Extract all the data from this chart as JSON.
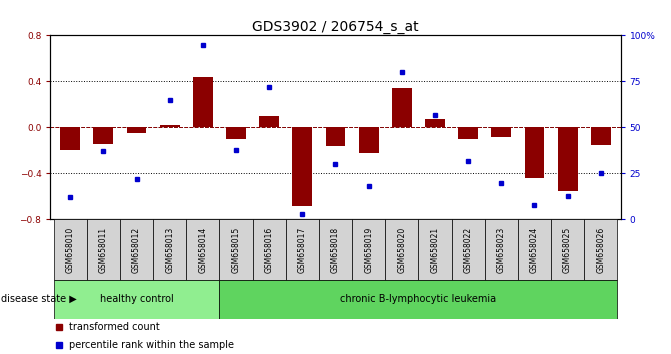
{
  "title": "GDS3902 / 206754_s_at",
  "samples": [
    "GSM658010",
    "GSM658011",
    "GSM658012",
    "GSM658013",
    "GSM658014",
    "GSM658015",
    "GSM658016",
    "GSM658017",
    "GSM658018",
    "GSM658019",
    "GSM658020",
    "GSM658021",
    "GSM658022",
    "GSM658023",
    "GSM658024",
    "GSM658025",
    "GSM658026"
  ],
  "transformed_count": [
    -0.2,
    -0.14,
    -0.05,
    0.02,
    0.44,
    -0.1,
    0.1,
    -0.68,
    -0.16,
    -0.22,
    0.34,
    0.07,
    -0.1,
    -0.08,
    -0.44,
    -0.55,
    -0.15
  ],
  "percentile_rank": [
    12,
    37,
    22,
    65,
    95,
    38,
    72,
    3,
    30,
    18,
    80,
    57,
    32,
    20,
    8,
    13,
    25
  ],
  "group_labels": [
    "healthy control",
    "chronic B-lymphocytic leukemia"
  ],
  "healthy_count": 5,
  "bar_color": "#8b0000",
  "dot_color": "#0000cd",
  "ylim_left": [
    -0.8,
    0.8
  ],
  "ylim_right": [
    0,
    100
  ],
  "yticks_left": [
    -0.8,
    -0.4,
    0.0,
    0.4,
    0.8
  ],
  "yticks_right": [
    0,
    25,
    50,
    75,
    100
  ],
  "ytick_labels_right": [
    "0",
    "25",
    "50",
    "75",
    "100%"
  ],
  "disease_state_label": "disease state",
  "legend_bar_label": "transformed count",
  "legend_dot_label": "percentile rank within the sample",
  "background_color": "#ffffff",
  "title_fontsize": 10,
  "tick_fontsize": 6.5,
  "sample_fontsize": 5.5,
  "group_fontsize": 7,
  "legend_fontsize": 7
}
